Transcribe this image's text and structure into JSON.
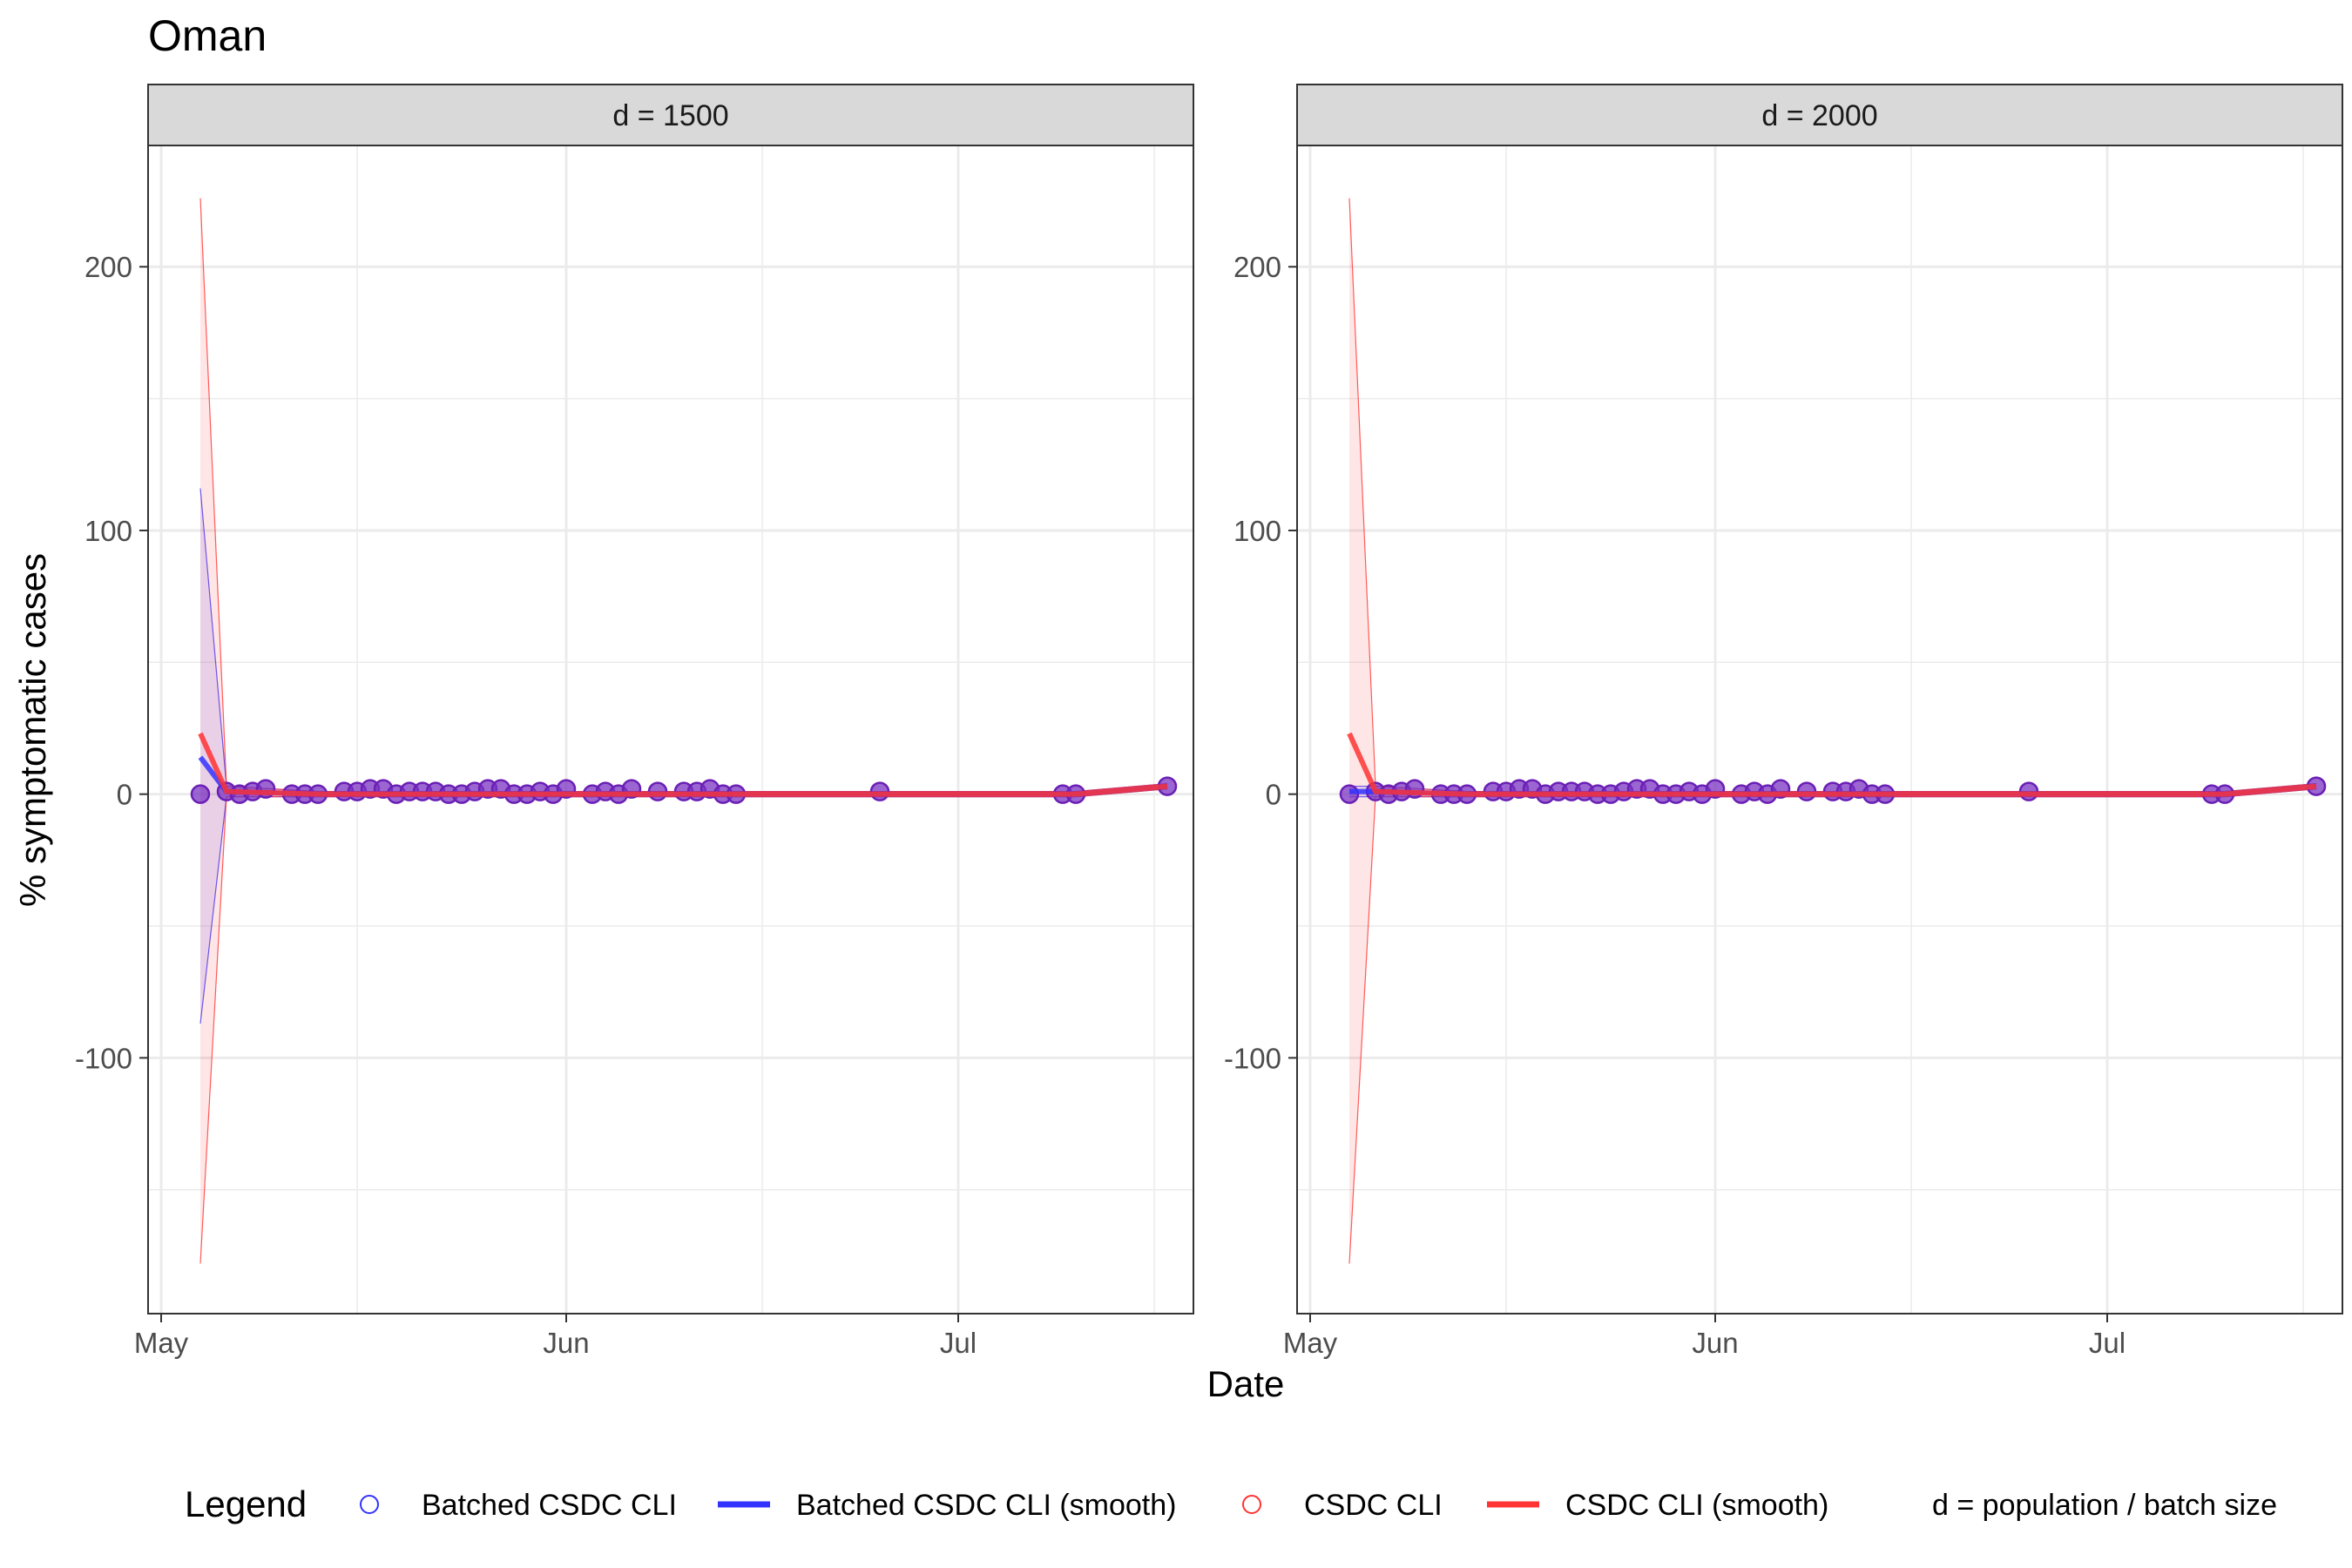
{
  "title": "Oman",
  "xlabel": "Date",
  "ylabel": "% symptomatic cases",
  "legend": {
    "title": "Legend",
    "items": [
      {
        "label": "Batched CSDC CLI",
        "kind": "point",
        "color": "#3333ff"
      },
      {
        "label": "Batched CSDC CLI (smooth)",
        "kind": "line",
        "color": "#3333ff"
      },
      {
        "label": "CSDC CLI",
        "kind": "point",
        "color": "#ff3333"
      },
      {
        "label": "CSDC CLI (smooth)",
        "kind": "line",
        "color": "#ff3333"
      }
    ],
    "note": "d = population / batch size"
  },
  "colors": {
    "batched": "#3333ff",
    "csdc": "#ff3333",
    "point_fill": "#7a33c2",
    "grid": "#ebebeb",
    "strip_bg": "#d9d9d9"
  },
  "chart_data": [
    {
      "type": "line",
      "strip": "d = 1500",
      "xlim": [
        "2020-04-30",
        "2020-07-19"
      ],
      "ylim": [
        -197,
        246
      ],
      "x_ticks": [
        {
          "date": "2020-05-01",
          "label": "May"
        },
        {
          "date": "2020-06-01",
          "label": "Jun"
        },
        {
          "date": "2020-07-01",
          "label": "Jul"
        }
      ],
      "x_minor_ticks": [
        "2020-05-16",
        "2020-06-16",
        "2020-07-16"
      ],
      "y_ticks": [
        -100,
        0,
        100,
        200
      ],
      "y_minor_ticks": [
        -150,
        -50,
        50,
        150
      ],
      "grid": true,
      "points": [
        [
          "2020-05-04",
          0
        ],
        [
          "2020-05-06",
          1
        ],
        [
          "2020-05-07",
          0
        ],
        [
          "2020-05-08",
          1
        ],
        [
          "2020-05-09",
          2
        ],
        [
          "2020-05-11",
          0
        ],
        [
          "2020-05-12",
          0
        ],
        [
          "2020-05-13",
          0
        ],
        [
          "2020-05-15",
          1
        ],
        [
          "2020-05-16",
          1
        ],
        [
          "2020-05-17",
          2
        ],
        [
          "2020-05-18",
          2
        ],
        [
          "2020-05-19",
          0
        ],
        [
          "2020-05-20",
          1
        ],
        [
          "2020-05-21",
          1
        ],
        [
          "2020-05-22",
          1
        ],
        [
          "2020-05-23",
          0
        ],
        [
          "2020-05-24",
          0
        ],
        [
          "2020-05-25",
          1
        ],
        [
          "2020-05-26",
          2
        ],
        [
          "2020-05-27",
          2
        ],
        [
          "2020-05-28",
          0
        ],
        [
          "2020-05-29",
          0
        ],
        [
          "2020-05-30",
          1
        ],
        [
          "2020-05-31",
          0
        ],
        [
          "2020-06-01",
          2
        ],
        [
          "2020-06-03",
          0
        ],
        [
          "2020-06-04",
          1
        ],
        [
          "2020-06-05",
          0
        ],
        [
          "2020-06-06",
          2
        ],
        [
          "2020-06-08",
          1
        ],
        [
          "2020-06-10",
          1
        ],
        [
          "2020-06-11",
          1
        ],
        [
          "2020-06-12",
          2
        ],
        [
          "2020-06-13",
          0
        ],
        [
          "2020-06-14",
          0
        ],
        [
          "2020-06-25",
          1
        ],
        [
          "2020-07-09",
          0
        ],
        [
          "2020-07-10",
          0
        ],
        [
          "2020-07-17",
          3
        ]
      ],
      "series": [
        {
          "name": "Batched CSDC CLI (smooth)",
          "color": "#3333ff",
          "line": [
            [
              "2020-05-04",
              14
            ],
            [
              "2020-05-06",
              1
            ],
            [
              "2020-05-13",
              0
            ],
            [
              "2020-06-01",
              0
            ],
            [
              "2020-07-10",
              0
            ],
            [
              "2020-07-17",
              3
            ]
          ],
          "ribbon": [
            [
              "2020-05-04",
              -87,
              116
            ],
            [
              "2020-05-06",
              -1,
              3
            ],
            [
              "2020-05-13",
              -1,
              1
            ],
            [
              "2020-06-01",
              -1,
              1
            ],
            [
              "2020-07-10",
              -1,
              1
            ],
            [
              "2020-07-17",
              2,
              4
            ]
          ]
        },
        {
          "name": "CSDC CLI (smooth)",
          "color": "#ff3333",
          "line": [
            [
              "2020-05-04",
              23
            ],
            [
              "2020-05-06",
              1
            ],
            [
              "2020-05-13",
              0
            ],
            [
              "2020-06-01",
              0
            ],
            [
              "2020-07-10",
              0
            ],
            [
              "2020-07-17",
              3
            ]
          ],
          "ribbon": [
            [
              "2020-05-04",
              -178,
              226
            ],
            [
              "2020-05-06",
              -1,
              3
            ],
            [
              "2020-05-13",
              -1,
              1
            ],
            [
              "2020-06-01",
              -1,
              1
            ],
            [
              "2020-07-10",
              -1,
              1
            ],
            [
              "2020-07-17",
              2,
              4
            ]
          ]
        }
      ]
    },
    {
      "type": "line",
      "strip": "d = 2000",
      "xlim": [
        "2020-04-30",
        "2020-07-19"
      ],
      "ylim": [
        -197,
        246
      ],
      "x_ticks": [
        {
          "date": "2020-05-01",
          "label": "May"
        },
        {
          "date": "2020-06-01",
          "label": "Jun"
        },
        {
          "date": "2020-07-01",
          "label": "Jul"
        }
      ],
      "x_minor_ticks": [
        "2020-05-16",
        "2020-06-16",
        "2020-07-16"
      ],
      "y_ticks": [
        -100,
        0,
        100,
        200
      ],
      "y_minor_ticks": [
        -150,
        -50,
        50,
        150
      ],
      "grid": true,
      "points": [
        [
          "2020-05-04",
          0
        ],
        [
          "2020-05-06",
          1
        ],
        [
          "2020-05-07",
          0
        ],
        [
          "2020-05-08",
          1
        ],
        [
          "2020-05-09",
          2
        ],
        [
          "2020-05-11",
          0
        ],
        [
          "2020-05-12",
          0
        ],
        [
          "2020-05-13",
          0
        ],
        [
          "2020-05-15",
          1
        ],
        [
          "2020-05-16",
          1
        ],
        [
          "2020-05-17",
          2
        ],
        [
          "2020-05-18",
          2
        ],
        [
          "2020-05-19",
          0
        ],
        [
          "2020-05-20",
          1
        ],
        [
          "2020-05-21",
          1
        ],
        [
          "2020-05-22",
          1
        ],
        [
          "2020-05-23",
          0
        ],
        [
          "2020-05-24",
          0
        ],
        [
          "2020-05-25",
          1
        ],
        [
          "2020-05-26",
          2
        ],
        [
          "2020-05-27",
          2
        ],
        [
          "2020-05-28",
          0
        ],
        [
          "2020-05-29",
          0
        ],
        [
          "2020-05-30",
          1
        ],
        [
          "2020-05-31",
          0
        ],
        [
          "2020-06-01",
          2
        ],
        [
          "2020-06-03",
          0
        ],
        [
          "2020-06-04",
          1
        ],
        [
          "2020-06-05",
          0
        ],
        [
          "2020-06-06",
          2
        ],
        [
          "2020-06-08",
          1
        ],
        [
          "2020-06-10",
          1
        ],
        [
          "2020-06-11",
          1
        ],
        [
          "2020-06-12",
          2
        ],
        [
          "2020-06-13",
          0
        ],
        [
          "2020-06-14",
          0
        ],
        [
          "2020-06-25",
          1
        ],
        [
          "2020-07-09",
          0
        ],
        [
          "2020-07-10",
          0
        ],
        [
          "2020-07-17",
          3
        ]
      ],
      "series": [
        {
          "name": "Batched CSDC CLI (smooth)",
          "color": "#3333ff",
          "line": [
            [
              "2020-05-04",
              1
            ],
            [
              "2020-05-06",
              1
            ],
            [
              "2020-05-13",
              0
            ],
            [
              "2020-06-01",
              0
            ],
            [
              "2020-07-10",
              0
            ],
            [
              "2020-07-17",
              3
            ]
          ],
          "ribbon": [
            [
              "2020-05-04",
              -1,
              3
            ],
            [
              "2020-05-06",
              -1,
              3
            ],
            [
              "2020-05-13",
              -1,
              1
            ],
            [
              "2020-06-01",
              -1,
              1
            ],
            [
              "2020-07-10",
              -1,
              1
            ],
            [
              "2020-07-17",
              2,
              4
            ]
          ]
        },
        {
          "name": "CSDC CLI (smooth)",
          "color": "#ff3333",
          "line": [
            [
              "2020-05-04",
              23
            ],
            [
              "2020-05-06",
              1
            ],
            [
              "2020-05-13",
              0
            ],
            [
              "2020-06-01",
              0
            ],
            [
              "2020-07-10",
              0
            ],
            [
              "2020-07-17",
              3
            ]
          ],
          "ribbon": [
            [
              "2020-05-04",
              -178,
              226
            ],
            [
              "2020-05-06",
              -1,
              3
            ],
            [
              "2020-05-13",
              -1,
              1
            ],
            [
              "2020-06-01",
              -1,
              1
            ],
            [
              "2020-07-10",
              -1,
              1
            ],
            [
              "2020-07-17",
              2,
              4
            ]
          ]
        }
      ]
    }
  ]
}
